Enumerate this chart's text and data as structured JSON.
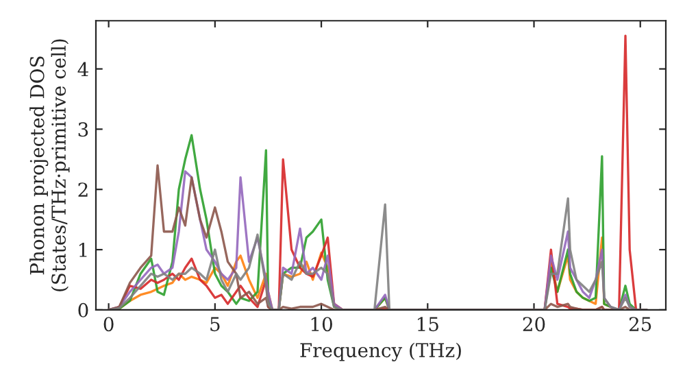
{
  "chart_data": {
    "type": "line",
    "xlabel": "Frequency (THz)",
    "ylabel": "Phonon projected DOS\n(States/THz·primitive cell)",
    "x": [
      0,
      0.5,
      1,
      1.5,
      2,
      2.3,
      2.6,
      3,
      3.3,
      3.6,
      3.9,
      4.3,
      4.6,
      5,
      5.3,
      5.6,
      6,
      6.2,
      6.6,
      7,
      7.4,
      7.5,
      7.7,
      8,
      8.2,
      8.6,
      9,
      9.3,
      9.6,
      10,
      10.3,
      10.6,
      11,
      12.5,
      13.0,
      13.2,
      13.6,
      20.5,
      20.8,
      21.1,
      21.6,
      21.7,
      22,
      22.3,
      22.6,
      22.9,
      23.2,
      23.3,
      23.6,
      24,
      24.3,
      24.5,
      24.8,
      25.3
    ],
    "series": [
      {
        "color": "#ff7f0e",
        "values": [
          0,
          0.02,
          0.15,
          0.25,
          0.3,
          0.35,
          0.4,
          0.45,
          0.6,
          0.5,
          0.55,
          0.5,
          0.45,
          0.7,
          0.6,
          0.4,
          0.8,
          0.9,
          0.5,
          0.2,
          0.6,
          0.3,
          0,
          0,
          0.6,
          0.55,
          0.6,
          0.8,
          0.5,
          0.95,
          0.7,
          0.1,
          0,
          0,
          0.2,
          0,
          0,
          0,
          0.8,
          0.3,
          0.9,
          0.5,
          0.3,
          0.2,
          0.15,
          0.1,
          1.2,
          0.1,
          0.05,
          null,
          null,
          null,
          null,
          null
        ]
      },
      {
        "color": "#2ca02c",
        "values": [
          0,
          0.02,
          0.15,
          0.6,
          0.85,
          0.3,
          0.25,
          0.8,
          2.0,
          2.5,
          2.9,
          2.0,
          1.5,
          0.6,
          0.4,
          0.3,
          0.1,
          0.2,
          0.15,
          0.3,
          2.65,
          0.2,
          0,
          0,
          0.6,
          0.7,
          0.7,
          1.2,
          1.3,
          1.5,
          0.5,
          0.05,
          0,
          0,
          0.2,
          0,
          0,
          0,
          0.7,
          0.3,
          1.0,
          0.6,
          0.3,
          0.2,
          0.15,
          0.2,
          2.55,
          0.1,
          0.05,
          0,
          0.4,
          0.1,
          0,
          0
        ]
      },
      {
        "color": "#d62728",
        "values": [
          0,
          0.05,
          0.4,
          0.35,
          0.5,
          0.45,
          0.5,
          0.6,
          0.5,
          0.7,
          0.85,
          0.5,
          0.4,
          0.2,
          0.25,
          0.1,
          0.3,
          0.4,
          0.2,
          0.05,
          0.5,
          0.05,
          0,
          0,
          2.5,
          1.0,
          0.7,
          0.6,
          0.55,
          0.9,
          1.2,
          0.1,
          0,
          0,
          0.02,
          0,
          0,
          0,
          1.0,
          0.1,
          0.05,
          0.02,
          0.02,
          0,
          0,
          0,
          0.05,
          0,
          0,
          0,
          4.55,
          1.0,
          0,
          0
        ]
      },
      {
        "color": "#9467bd",
        "values": [
          0,
          0.05,
          0.3,
          0.5,
          0.7,
          0.75,
          0.6,
          0.7,
          1.3,
          2.3,
          2.2,
          1.5,
          1.0,
          0.8,
          0.6,
          0.5,
          0.7,
          2.2,
          0.8,
          1.2,
          0.5,
          0.3,
          0,
          0,
          0.7,
          0.6,
          1.35,
          0.6,
          0.7,
          0.5,
          0.9,
          0.1,
          0,
          0,
          0.25,
          0,
          0,
          0,
          0.9,
          0.5,
          1.3,
          0.7,
          0.5,
          0.3,
          0.2,
          0.5,
          1.0,
          0.2,
          0.05,
          0,
          0.25,
          0.05,
          0,
          0
        ]
      },
      {
        "color": "#8c564b",
        "values": [
          0,
          0.05,
          0.45,
          0.7,
          0.9,
          2.4,
          1.3,
          1.3,
          1.7,
          1.4,
          2.2,
          1.5,
          1.2,
          1.7,
          1.3,
          0.8,
          0.6,
          0.2,
          0.3,
          0.1,
          0.2,
          0.05,
          0,
          0,
          0.05,
          0.02,
          0.05,
          0.05,
          0.05,
          0.1,
          0.05,
          0,
          0,
          0,
          0.05,
          0,
          0,
          0,
          0.1,
          0.05,
          0.1,
          0.05,
          0.02,
          0,
          0,
          0,
          0.05,
          0,
          0,
          0,
          0.05,
          0,
          0,
          0
        ]
      },
      {
        "color": "#7f7f7f",
        "values": [
          0,
          0.03,
          0.2,
          0.4,
          0.6,
          0.55,
          0.6,
          0.5,
          0.6,
          0.6,
          0.7,
          0.6,
          0.5,
          1.0,
          0.5,
          0.3,
          0.6,
          0.5,
          0.7,
          1.25,
          0.4,
          0.1,
          0,
          0,
          0.6,
          0.5,
          0.8,
          0.6,
          0.6,
          0.7,
          0.6,
          0.05,
          0,
          0,
          1.75,
          0,
          0,
          0,
          0.6,
          0.6,
          1.85,
          1.0,
          0.5,
          0.4,
          0.3,
          0.5,
          0.8,
          0.2,
          0.05,
          0,
          0.2,
          0.05,
          0,
          0
        ]
      }
    ],
    "xlim": [
      -0.6,
      26.2
    ],
    "ylim": [
      0,
      4.8
    ],
    "xticks": [
      0,
      5,
      10,
      15,
      20,
      25
    ],
    "yticks": [
      0,
      1,
      2,
      3,
      4
    ],
    "grid": false
  }
}
